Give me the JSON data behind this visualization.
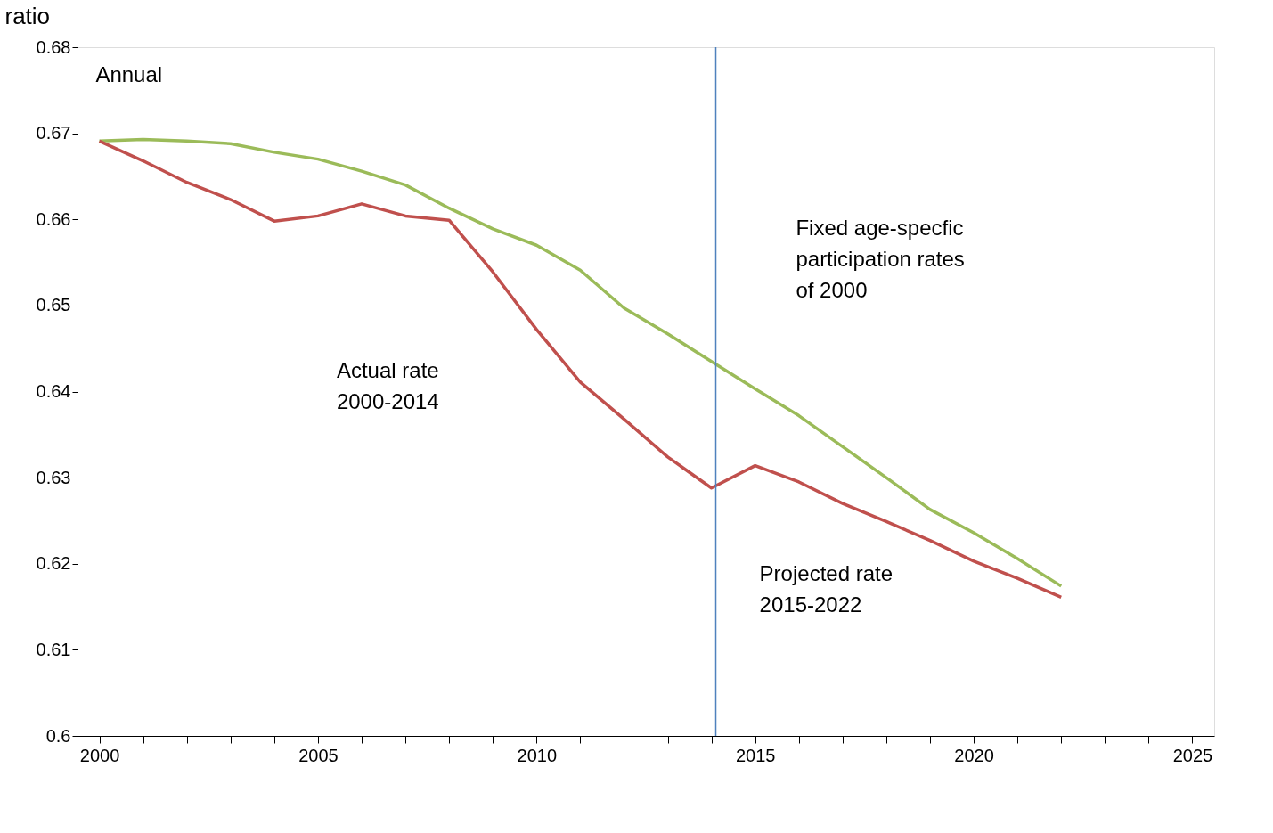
{
  "chart_data": {
    "type": "line",
    "ylabel": "ratio",
    "annotations": [
      "Annual",
      "Actual rate\n2000-2014",
      "Fixed  age-specfic\nparticipation rates\n of 2000",
      "Projected rate\n2015-2022"
    ],
    "x": [
      2000,
      2001,
      2002,
      2003,
      2004,
      2005,
      2006,
      2007,
      2008,
      2009,
      2010,
      2011,
      2012,
      2013,
      2014,
      2015,
      2016,
      2017,
      2018,
      2019,
      2020,
      2021,
      2022
    ],
    "series": [
      {
        "color": "#9bbb59",
        "values": [
          0.6691,
          0.6693,
          0.6691,
          0.6688,
          0.6678,
          0.667,
          0.6656,
          0.664,
          0.6613,
          0.6589,
          0.657,
          0.6541,
          0.6497,
          0.6467,
          0.6435,
          0.6403,
          0.6372,
          0.6336,
          0.63,
          0.6263,
          0.6236,
          0.6206,
          0.6174
        ]
      },
      {
        "color": "#c0504d",
        "values": [
          0.6691,
          0.6668,
          0.6643,
          0.6623,
          0.6598,
          0.6604,
          0.6618,
          0.6604,
          0.6599,
          0.6539,
          0.6472,
          0.6411,
          0.6368,
          0.6324,
          0.6288,
          0.6314,
          0.6295,
          0.627,
          0.6249,
          0.6227,
          0.6203,
          0.6183,
          0.6161
        ]
      }
    ],
    "xlim": [
      1999.5,
      2025.5
    ],
    "xticks": [
      2000,
      {
        "value": 2001,
        "label": null
      },
      {
        "value": 2002,
        "label": null
      },
      {
        "value": 2003,
        "label": null
      },
      {
        "value": 2004,
        "label": null
      },
      2005,
      {
        "value": 2006,
        "label": null
      },
      {
        "value": 2007,
        "label": null
      },
      {
        "value": 2008,
        "label": null
      },
      {
        "value": 2009,
        "label": null
      },
      2010,
      {
        "value": 2011,
        "label": null
      },
      {
        "value": 2012,
        "label": null
      },
      {
        "value": 2013,
        "label": null
      },
      {
        "value": 2014,
        "label": null
      },
      2015,
      {
        "value": 2016,
        "label": null
      },
      {
        "value": 2017,
        "label": null
      },
      {
        "value": 2018,
        "label": null
      },
      {
        "value": 2019,
        "label": null
      },
      2020,
      {
        "value": 2021,
        "label": null
      },
      {
        "value": 2022,
        "label": null
      },
      {
        "value": 2023,
        "label": null
      },
      {
        "value": 2024,
        "label": null
      },
      2025
    ],
    "ylim": [
      0.6,
      0.68
    ],
    "yticks": [
      0.6,
      0.61,
      0.62,
      0.63,
      0.64,
      0.65,
      0.66,
      0.67,
      0.68
    ],
    "ref_lines": [
      {
        "axis": "x",
        "value": 2014.1,
        "color": "#4f81bd"
      }
    ],
    "grid": false,
    "marker": "none",
    "line_style": "solid"
  }
}
